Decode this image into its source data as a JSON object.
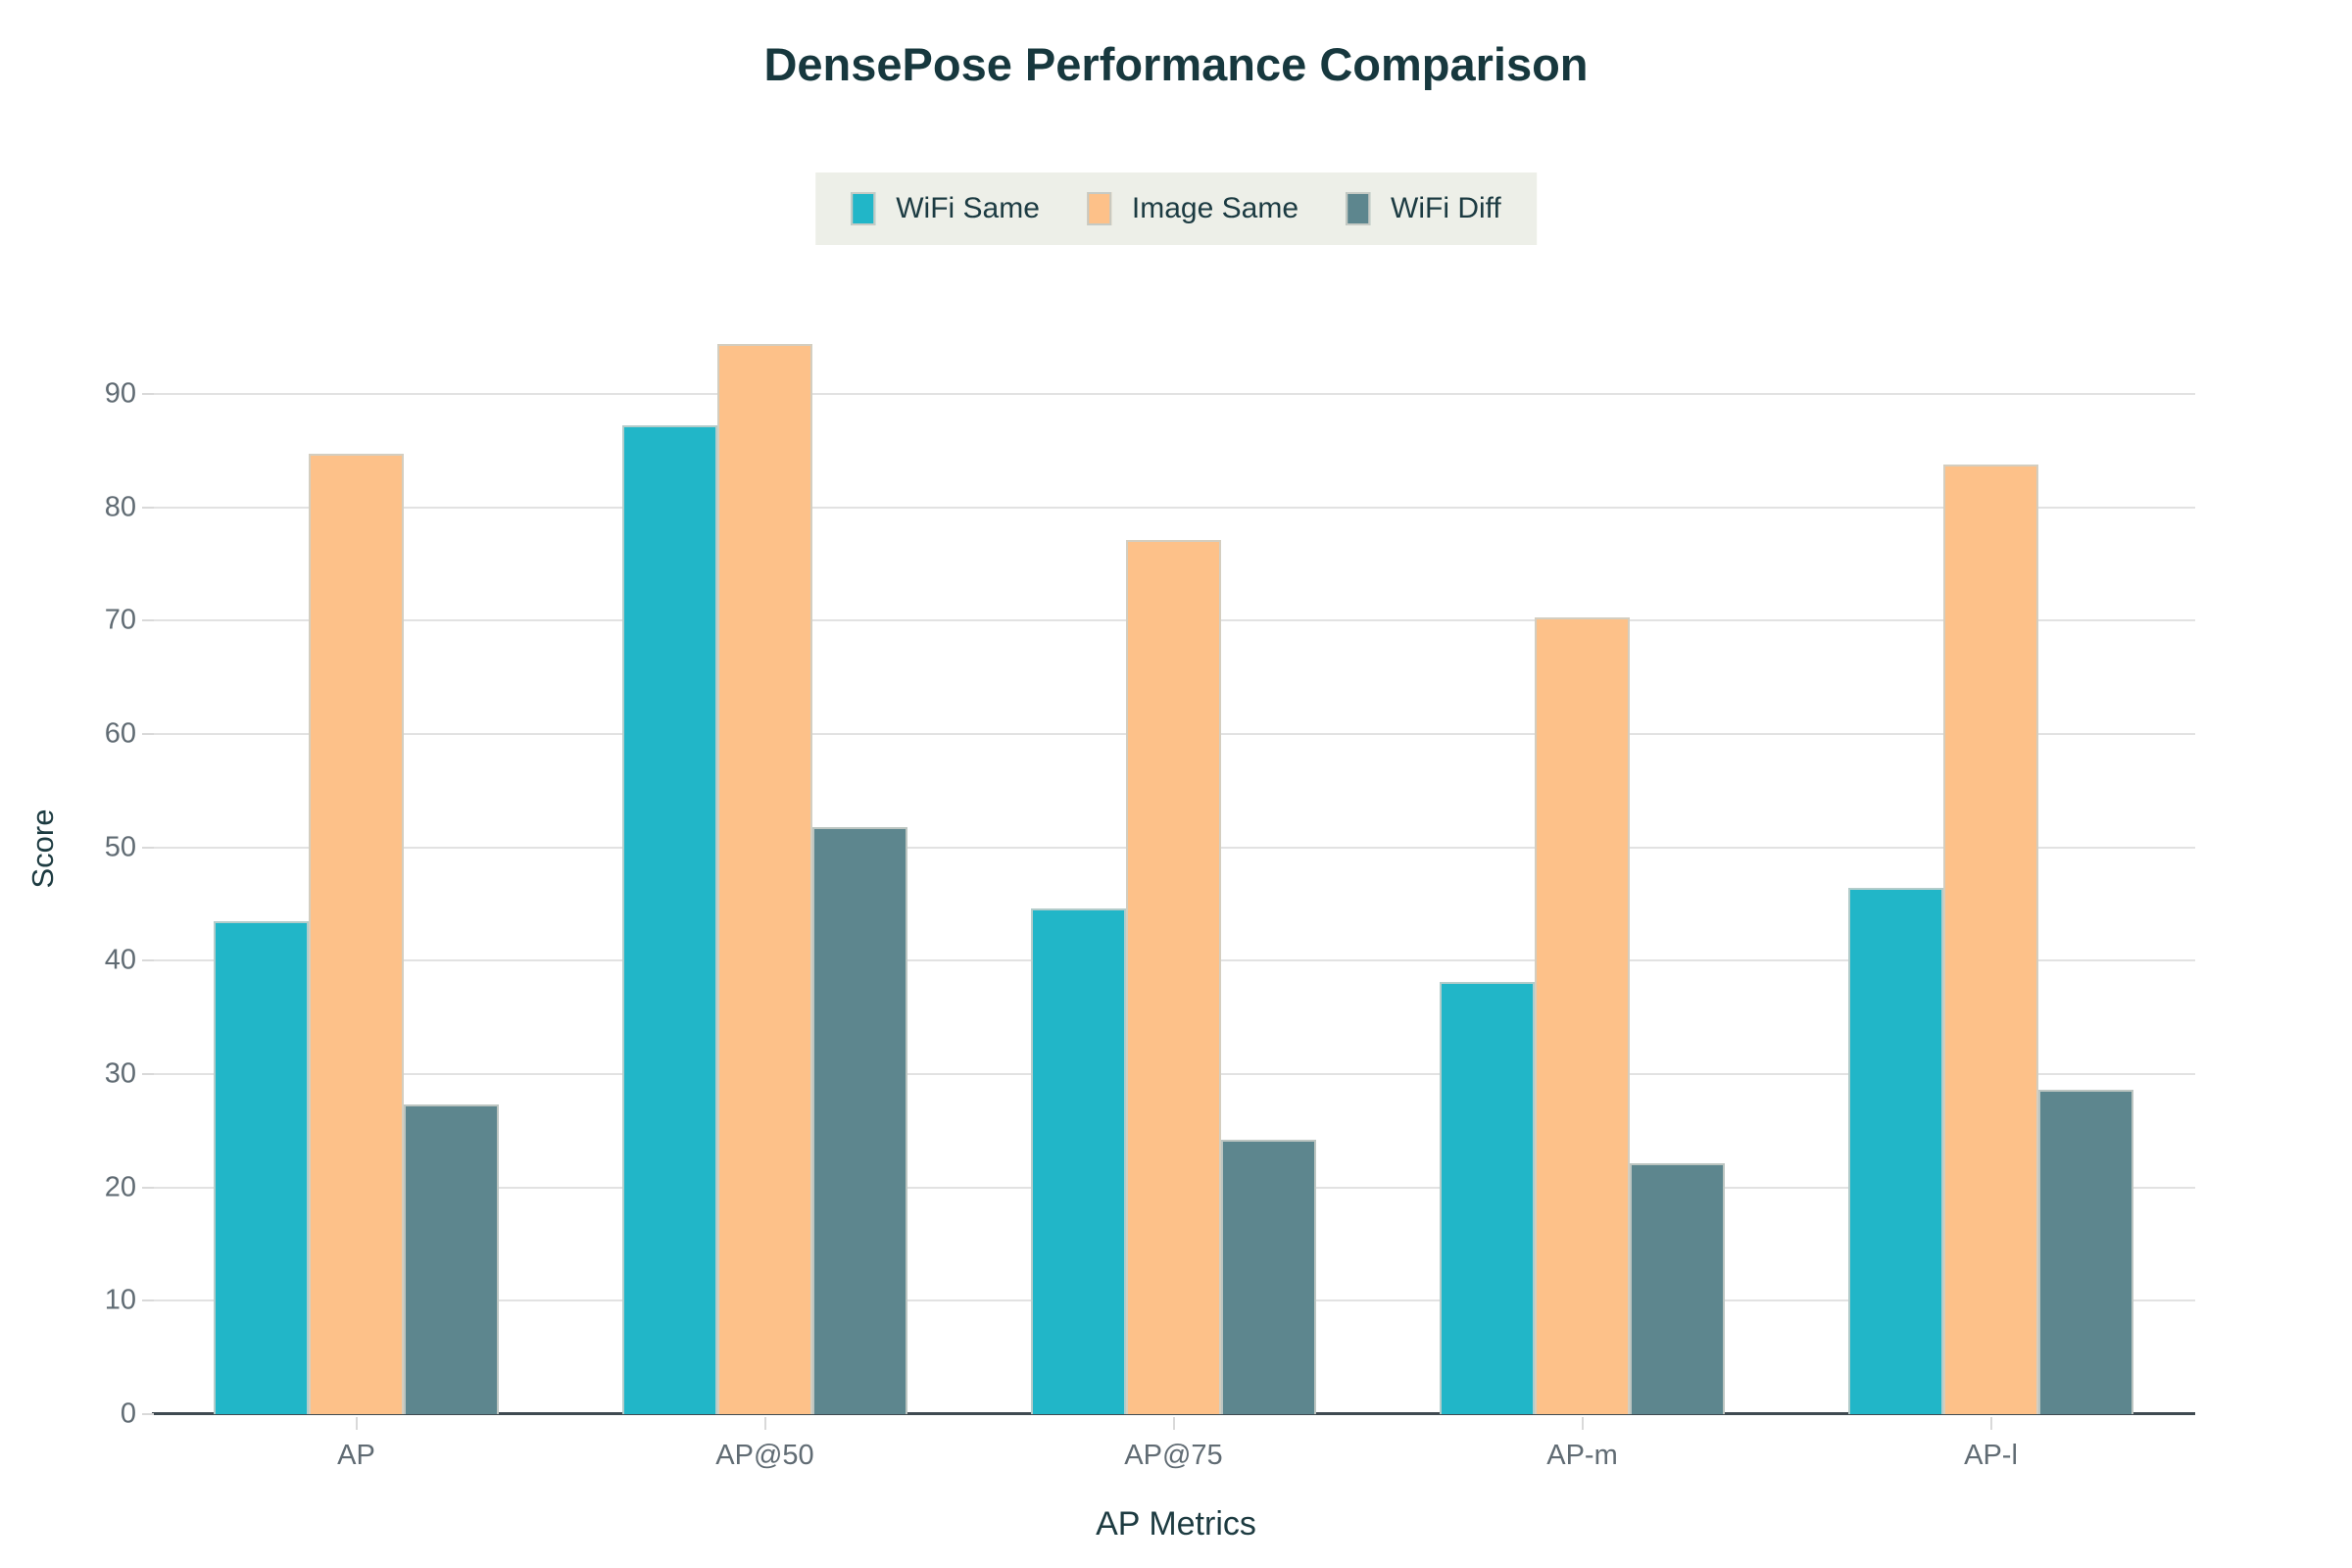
{
  "title": "DensePose Performance Comparison",
  "x_axis_title": "AP Metrics",
  "y_axis_title": "Score",
  "colors": {
    "wifi_same": "#21b6c8",
    "image_same": "#fdc189",
    "wifi_diff": "#5d868e",
    "title_text": "#17383e",
    "axis_title_text": "#1d3b41",
    "tick_label_text": "#606b73",
    "gridline": "#e2e2e2",
    "axis_line": "#3f4a51",
    "legend_background": "#edefe8"
  },
  "legend": {
    "items": [
      {
        "label": "WiFi Same",
        "color": "#21b6c8"
      },
      {
        "label": "Image Same",
        "color": "#fdc189"
      },
      {
        "label": "WiFi Diff",
        "color": "#5d868e"
      }
    ]
  },
  "chart_data": {
    "type": "bar",
    "title": "DensePose Performance Comparison",
    "xlabel": "AP Metrics",
    "ylabel": "Score",
    "categories": [
      "AP",
      "AP@50",
      "AP@75",
      "AP-m",
      "AP-l"
    ],
    "series": [
      {
        "name": "WiFi Same",
        "color": "#21b6c8",
        "values": [
          43.5,
          87.2,
          44.6,
          38.1,
          46.4
        ]
      },
      {
        "name": "Image Same",
        "color": "#fdc189",
        "values": [
          84.7,
          94.4,
          77.1,
          70.3,
          83.8
        ]
      },
      {
        "name": "WiFi Diff",
        "color": "#5d868e",
        "values": [
          27.3,
          51.8,
          24.2,
          22.1,
          28.6
        ]
      }
    ],
    "ylim": [
      0,
      95
    ],
    "yticks": [
      0,
      10,
      20,
      30,
      40,
      50,
      60,
      70,
      80,
      90
    ],
    "grid": true,
    "legend_position": "top"
  }
}
